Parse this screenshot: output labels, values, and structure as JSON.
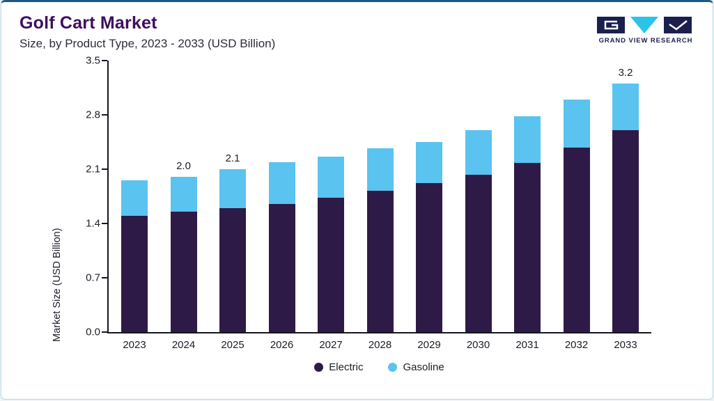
{
  "header": {
    "title": "Golf Cart Market",
    "subtitle": "Size, by Product Type, 2023 - 2033 (USD Billion)"
  },
  "logo": {
    "name": "grand-view-research-logo",
    "text": "GRAND VIEW RESEARCH"
  },
  "chart_data": {
    "type": "bar",
    "stacked": true,
    "title": "Golf Cart Market Size, by Product Type, 2023 - 2033 (USD Billion)",
    "categories": [
      "2023",
      "2024",
      "2025",
      "2026",
      "2027",
      "2028",
      "2029",
      "2030",
      "2031",
      "2032",
      "2033"
    ],
    "series": [
      {
        "name": "Electric",
        "color": "#2E1A47",
        "values": [
          1.5,
          1.55,
          1.6,
          1.65,
          1.73,
          1.82,
          1.92,
          2.03,
          2.18,
          2.38,
          2.6
        ]
      },
      {
        "name": "Gasoline",
        "color": "#5AC3F0",
        "values": [
          0.46,
          0.45,
          0.5,
          0.54,
          0.53,
          0.55,
          0.53,
          0.57,
          0.6,
          0.62,
          0.6
        ]
      }
    ],
    "value_labels": [
      "",
      "2.0",
      "2.1",
      "",
      "",
      "",
      "",
      "",
      "",
      "",
      "3.2"
    ],
    "xlabel": "",
    "ylabel": "Market Size (USD Billion)",
    "ylim": [
      0,
      3.5
    ],
    "yticks": [
      0.0,
      0.7,
      1.4,
      2.1,
      2.8,
      3.5
    ],
    "grid": false,
    "legend_position": "bottom"
  },
  "colors": {
    "title": "#3F0E5E",
    "electric": "#2E1A47",
    "gasoline": "#5AC3F0",
    "card_border": "#b5d8e9",
    "card_top_border": "#1b5a86",
    "logo_navy": "#1b1f4e",
    "logo_cyan": "#29c4e8"
  }
}
